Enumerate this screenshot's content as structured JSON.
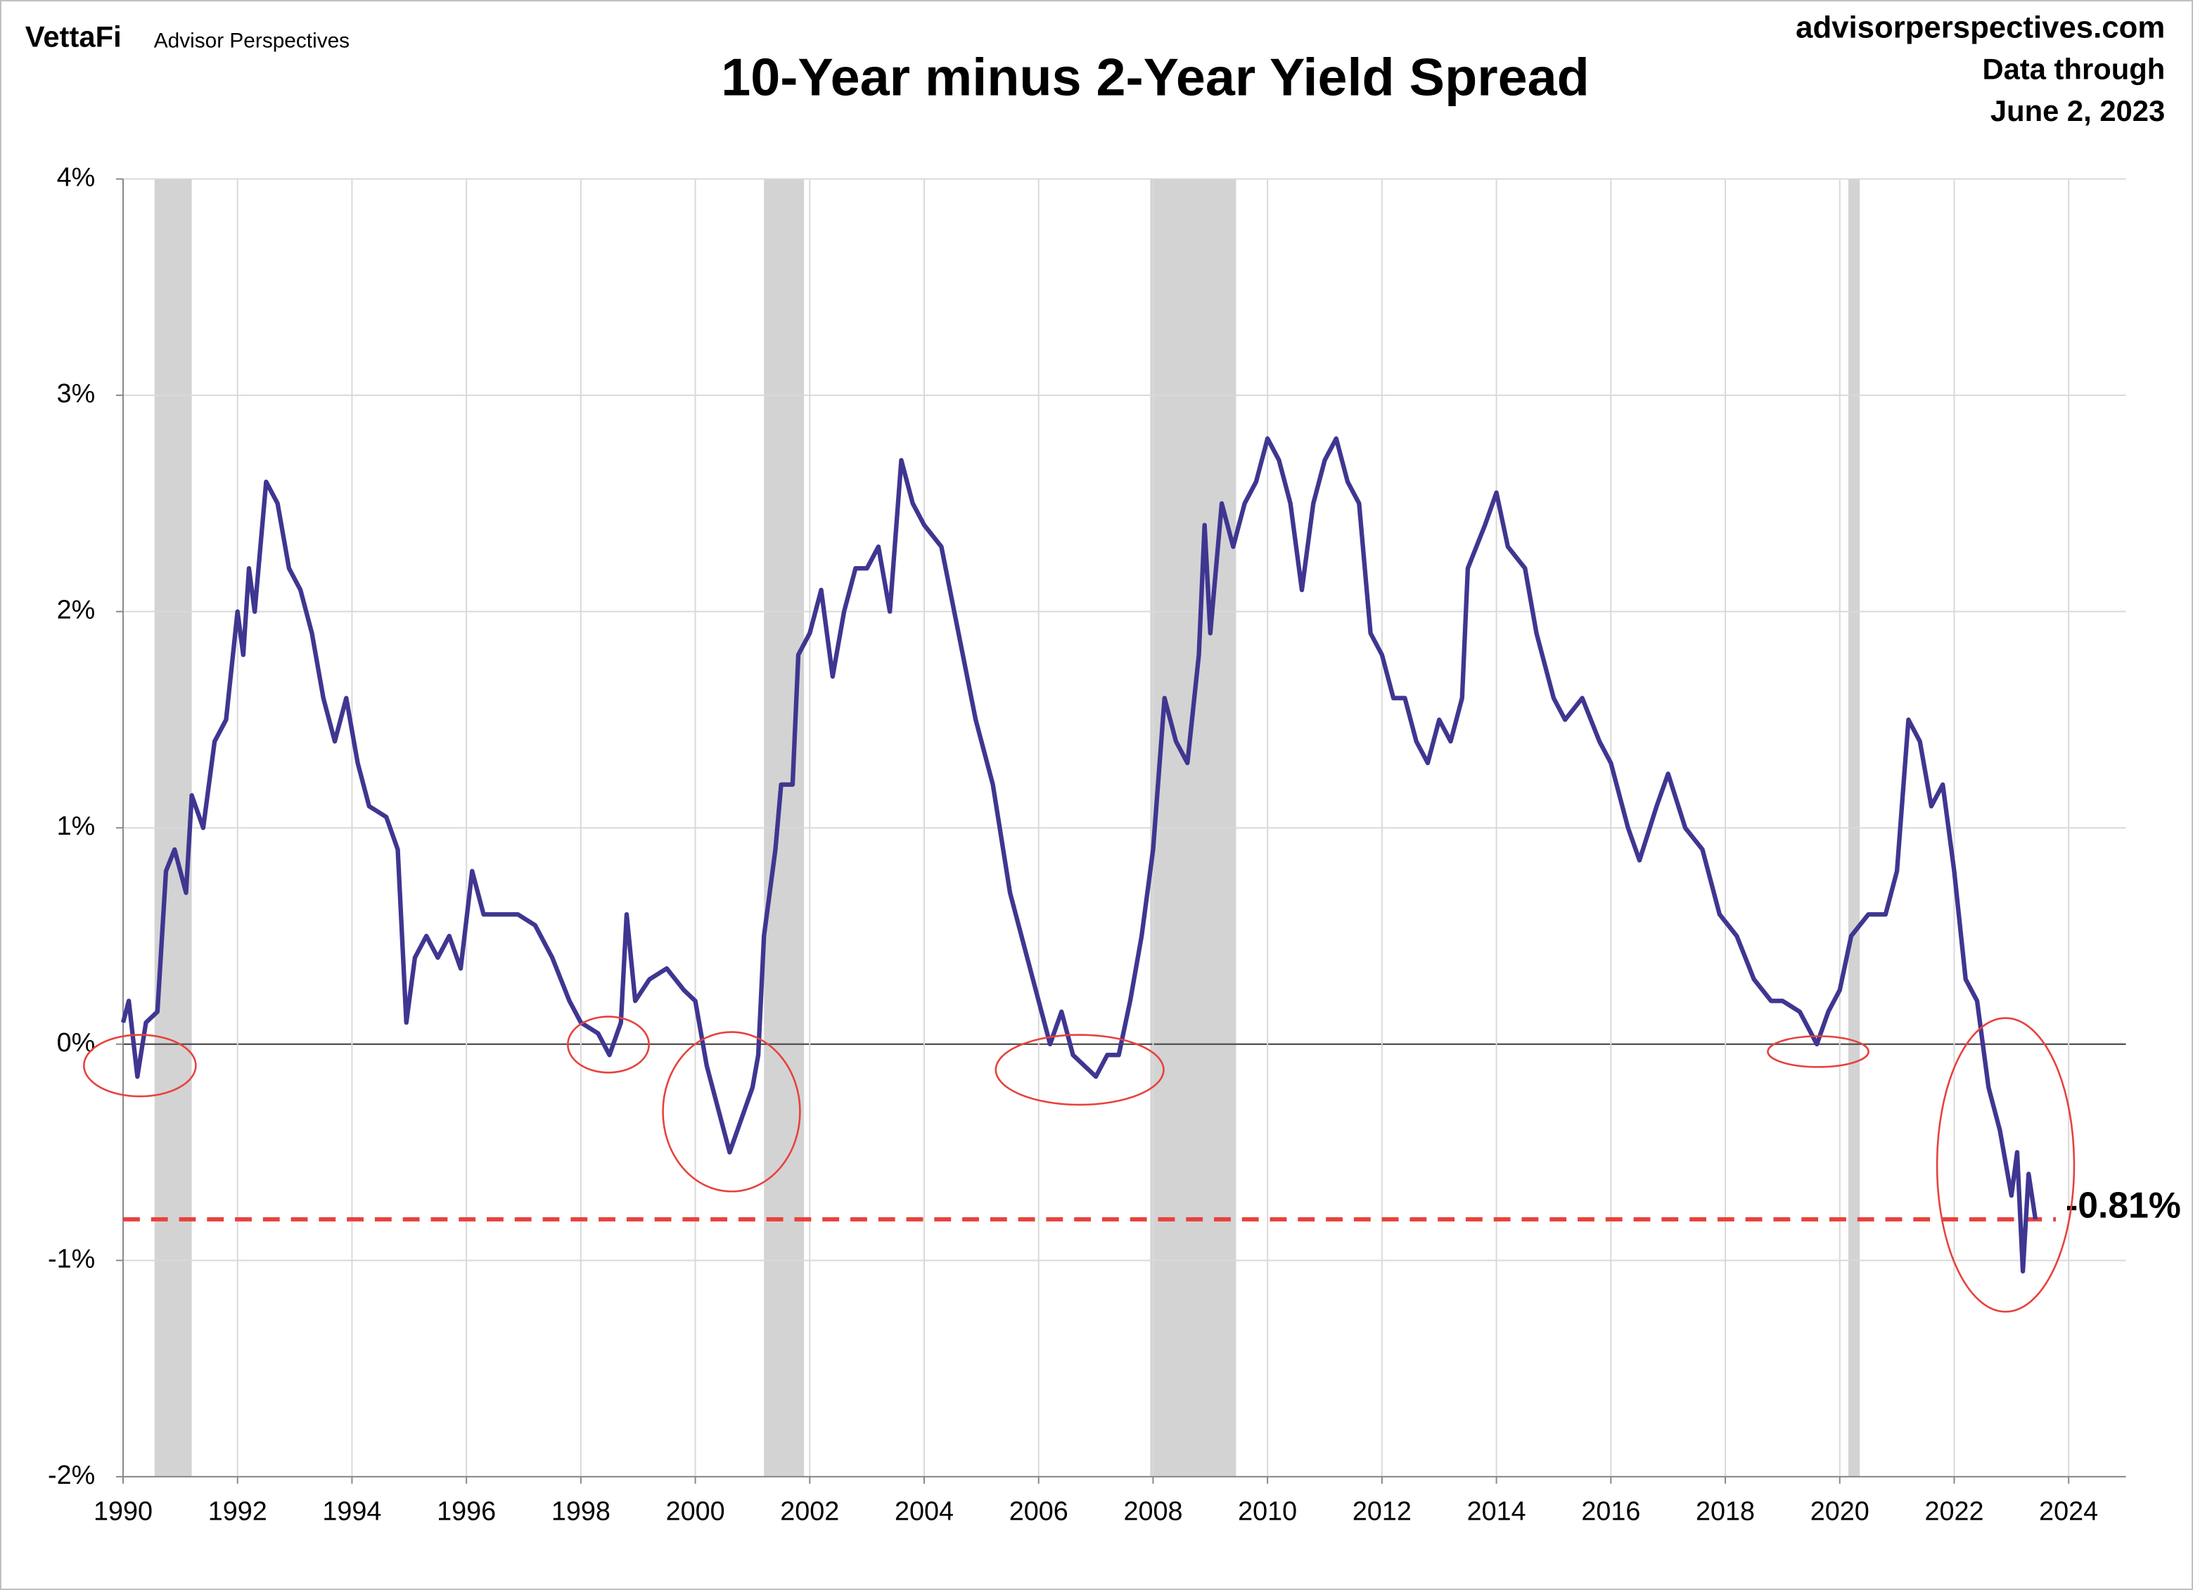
{
  "chart_data": {
    "type": "line",
    "brand": "VettaFi",
    "brand_sub": "Advisor Perspectives",
    "title": "10-Year minus 2-Year Yield Spread",
    "source": "advisorperspectives.com",
    "data_through": "Data through",
    "date": "June 2, 2023",
    "color": "#3f3691",
    "recession_color": "#d3d3d3",
    "recessions": [
      [
        1990.55,
        1991.2
      ],
      [
        2001.2,
        2001.9
      ],
      [
        2007.95,
        2009.45
      ],
      [
        2020.15,
        2020.35
      ]
    ],
    "reference_line": {
      "value": -0.81,
      "label": "-0.81%",
      "color": "#e8413c"
    },
    "xlim": [
      1990,
      2025
    ],
    "xticks": [
      1990,
      1992,
      1994,
      1996,
      1998,
      2000,
      2002,
      2004,
      2006,
      2008,
      2010,
      2012,
      2014,
      2016,
      2018,
      2020,
      2022,
      2024
    ],
    "ylim": [
      -2,
      4
    ],
    "yticks": [
      {
        "value": -2,
        "label": "-2%"
      },
      {
        "value": -1,
        "label": "-1%"
      },
      {
        "value": 0,
        "label": "0%"
      },
      {
        "value": 1,
        "label": "1%"
      },
      {
        "value": 2,
        "label": "2%"
      },
      {
        "value": 3,
        "label": "3%"
      },
      {
        "value": 4,
        "label": "4%"
      }
    ],
    "grid": true,
    "x": [
      1990.0,
      1990.1,
      1990.25,
      1990.4,
      1990.6,
      1990.75,
      1990.9,
      1991.1,
      1991.2,
      1991.4,
      1991.6,
      1991.8,
      1992.0,
      1992.1,
      1992.2,
      1992.3,
      1992.5,
      1992.7,
      1992.9,
      1993.1,
      1993.3,
      1993.5,
      1993.7,
      1993.9,
      1994.1,
      1994.3,
      1994.6,
      1994.8,
      1994.95,
      1995.1,
      1995.3,
      1995.5,
      1995.7,
      1995.9,
      1996.1,
      1996.3,
      1996.6,
      1996.9,
      1997.2,
      1997.5,
      1997.8,
      1998.0,
      1998.3,
      1998.5,
      1998.7,
      1998.8,
      1998.95,
      1999.2,
      1999.5,
      1999.8,
      2000.0,
      2000.2,
      2000.4,
      2000.6,
      2000.8,
      2001.0,
      2001.1,
      2001.2,
      2001.4,
      2001.5,
      2001.7,
      2001.8,
      2002.0,
      2002.2,
      2002.4,
      2002.6,
      2002.8,
      2003.0,
      2003.2,
      2003.4,
      2003.6,
      2003.8,
      2004.0,
      2004.3,
      2004.6,
      2004.9,
      2005.2,
      2005.5,
      2005.8,
      2006.0,
      2006.2,
      2006.4,
      2006.6,
      2006.8,
      2007.0,
      2007.2,
      2007.4,
      2007.6,
      2007.8,
      2008.0,
      2008.2,
      2008.4,
      2008.6,
      2008.8,
      2008.9,
      2009.0,
      2009.2,
      2009.4,
      2009.6,
      2009.8,
      2010.0,
      2010.2,
      2010.4,
      2010.6,
      2010.8,
      2011.0,
      2011.2,
      2011.4,
      2011.6,
      2011.8,
      2012.0,
      2012.2,
      2012.4,
      2012.6,
      2012.8,
      2013.0,
      2013.2,
      2013.4,
      2013.5,
      2013.8,
      2014.0,
      2014.2,
      2014.5,
      2014.7,
      2015.0,
      2015.2,
      2015.5,
      2015.8,
      2016.0,
      2016.3,
      2016.5,
      2016.8,
      2017.0,
      2017.3,
      2017.6,
      2017.9,
      2018.2,
      2018.5,
      2018.8,
      2019.0,
      2019.3,
      2019.6,
      2019.8,
      2020.0,
      2020.2,
      2020.5,
      2020.8,
      2021.0,
      2021.2,
      2021.4,
      2021.6,
      2021.8,
      2022.0,
      2022.2,
      2022.4,
      2022.6,
      2022.8,
      2023.0,
      2023.1,
      2023.2,
      2023.3,
      2023.42
    ],
    "values": [
      0.1,
      0.2,
      -0.15,
      0.1,
      0.15,
      0.8,
      0.9,
      0.7,
      1.15,
      1.0,
      1.4,
      1.5,
      2.0,
      1.8,
      2.2,
      2.0,
      2.6,
      2.5,
      2.2,
      2.1,
      1.9,
      1.6,
      1.4,
      1.6,
      1.3,
      1.1,
      1.05,
      0.9,
      0.1,
      0.4,
      0.5,
      0.4,
      0.5,
      0.35,
      0.8,
      0.6,
      0.6,
      0.6,
      0.55,
      0.4,
      0.2,
      0.1,
      0.05,
      -0.05,
      0.1,
      0.6,
      0.2,
      0.3,
      0.35,
      0.25,
      0.2,
      -0.1,
      -0.3,
      -0.5,
      -0.35,
      -0.2,
      -0.05,
      0.5,
      0.9,
      1.2,
      1.2,
      1.8,
      1.9,
      2.1,
      1.7,
      2.0,
      2.2,
      2.2,
      2.3,
      2.0,
      2.7,
      2.5,
      2.4,
      2.3,
      1.9,
      1.5,
      1.2,
      0.7,
      0.4,
      0.2,
      0.0,
      0.15,
      -0.05,
      -0.1,
      -0.15,
      -0.05,
      -0.05,
      0.2,
      0.5,
      0.9,
      1.6,
      1.4,
      1.3,
      1.8,
      2.4,
      1.9,
      2.5,
      2.3,
      2.5,
      2.6,
      2.8,
      2.7,
      2.5,
      2.1,
      2.5,
      2.7,
      2.8,
      2.6,
      2.5,
      1.9,
      1.8,
      1.6,
      1.6,
      1.4,
      1.3,
      1.5,
      1.4,
      1.6,
      2.2,
      2.4,
      2.55,
      2.3,
      2.2,
      1.9,
      1.6,
      1.5,
      1.6,
      1.4,
      1.3,
      1.0,
      0.85,
      1.1,
      1.25,
      1.0,
      0.9,
      0.6,
      0.5,
      0.3,
      0.2,
      0.2,
      0.15,
      0.0,
      0.15,
      0.25,
      0.5,
      0.6,
      0.6,
      0.8,
      1.5,
      1.4,
      1.1,
      1.2,
      0.8,
      0.3,
      0.2,
      -0.2,
      -0.4,
      -0.7,
      -0.5,
      -1.05,
      -0.6,
      -0.81
    ]
  }
}
